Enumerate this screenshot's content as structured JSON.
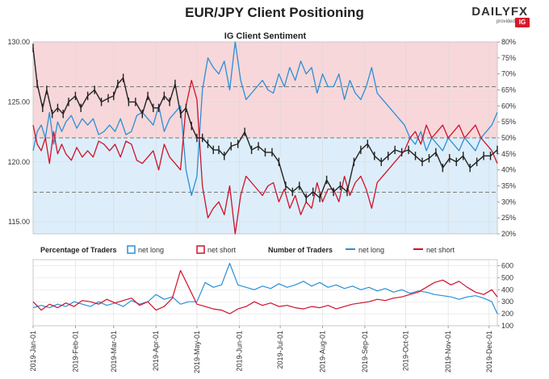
{
  "header": {
    "title": "EUR/JPY Client Positioning",
    "brand": "DAILYFX",
    "brand_sub": "provided by",
    "brand_badge": "IG"
  },
  "colors": {
    "net_long": "#2b8fd6",
    "net_short": "#d0112b",
    "price": "#222222",
    "short_fill": "#f7d7da",
    "long_fill": "#ddeefa",
    "panel_border": "#c9c9c9"
  },
  "chart_data": [
    {
      "type": "line",
      "title": "IG Client Sentiment",
      "y_left_ticks": [
        "130.00",
        "125.00",
        "120.00",
        "115.00"
      ],
      "y_left_range": [
        114,
        130
      ],
      "y_right_ticks": [
        "80%",
        "75%",
        "70%",
        "65%",
        "60%",
        "55%",
        "50%",
        "45%",
        "40%",
        "35%",
        "30%",
        "25%",
        "20%"
      ],
      "y_right_range": [
        20,
        80
      ],
      "dashed_levels_pct": [
        66,
        50,
        33
      ],
      "x_ticks": [
        "2019-Jan-01",
        "2019-Feb-01",
        "2019-Mar-01",
        "2019-Apr-01",
        "2019-May-01",
        "2019-Jun-01",
        "2019-Jul-01",
        "2019-Aug-01",
        "2019-Sep-01",
        "2019-Oct-01",
        "2019-Nov-01",
        "2019-Dec-01"
      ],
      "x_day_range": [
        0,
        340
      ],
      "price_series": {
        "days": [
          0,
          3,
          7,
          10,
          14,
          18,
          22,
          26,
          31,
          35,
          40,
          45,
          50,
          55,
          59,
          62,
          66,
          70,
          75,
          80,
          84,
          88,
          92,
          96,
          100,
          104,
          108,
          112,
          116,
          120,
          124,
          128,
          132,
          136,
          140,
          145,
          150,
          155,
          160,
          165,
          170,
          175,
          180,
          185,
          190,
          195,
          200,
          205,
          210,
          215,
          220,
          225,
          230,
          235,
          240,
          245,
          250,
          255,
          260,
          265,
          270,
          275,
          280,
          285,
          290,
          295,
          300,
          305,
          310,
          315,
          320,
          325,
          330,
          335,
          340
        ],
        "values": [
          129.5,
          126.5,
          124.5,
          126.0,
          124.0,
          124.5,
          124.0,
          125.0,
          125.5,
          124.5,
          125.5,
          126.0,
          125.0,
          125.3,
          125.5,
          126.5,
          127.0,
          125.0,
          125.0,
          124.0,
          125.5,
          124.5,
          124.5,
          125.5,
          125.0,
          126.5,
          124.0,
          124.5,
          123.0,
          122.0,
          122.0,
          121.5,
          121.0,
          121.0,
          120.5,
          121.3,
          121.5,
          122.5,
          121.0,
          121.3,
          120.8,
          120.8,
          120.0,
          118.0,
          117.5,
          118.0,
          117.0,
          117.5,
          117.0,
          118.5,
          117.5,
          118.0,
          117.5,
          120.0,
          121.0,
          121.5,
          120.5,
          120.0,
          120.5,
          121.0,
          120.8,
          121.0,
          120.5,
          120.0,
          120.3,
          120.8,
          119.5,
          120.3,
          120.0,
          120.5,
          119.5,
          120.0,
          120.5,
          120.5,
          121.0
        ]
      },
      "net_long_pct": {
        "days": [
          0,
          3,
          6,
          9,
          12,
          15,
          18,
          21,
          24,
          28,
          32,
          36,
          40,
          44,
          48,
          52,
          56,
          60,
          64,
          68,
          72,
          76,
          80,
          84,
          88,
          92,
          96,
          100,
          104,
          108,
          112,
          116,
          120,
          124,
          128,
          132,
          136,
          140,
          144,
          148,
          152,
          156,
          160,
          164,
          168,
          172,
          176,
          180,
          184,
          188,
          192,
          196,
          200,
          204,
          208,
          212,
          216,
          220,
          224,
          228,
          232,
          236,
          240,
          244,
          248,
          252,
          256,
          260,
          264,
          268,
          272,
          276,
          280,
          284,
          288,
          292,
          296,
          300,
          304,
          308,
          312,
          316,
          320,
          324,
          328,
          332,
          336,
          340
        ],
        "values": [
          46,
          52,
          54,
          50,
          58,
          48,
          55,
          52,
          55,
          57,
          53,
          56,
          54,
          56,
          51,
          52,
          54,
          52,
          56,
          51,
          52,
          57,
          58,
          56,
          54,
          60,
          52,
          56,
          58,
          60,
          40,
          32,
          38,
          65,
          75,
          72,
          70,
          74,
          65,
          80,
          68,
          62,
          64,
          66,
          68,
          65,
          64,
          70,
          66,
          72,
          68,
          74,
          70,
          72,
          64,
          70,
          66,
          66,
          70,
          62,
          68,
          64,
          62,
          66,
          72,
          64,
          62,
          60,
          58,
          56,
          54,
          50,
          48,
          52,
          46,
          50,
          48,
          46,
          50,
          48,
          46,
          50,
          48,
          46,
          50,
          52,
          54,
          58
        ]
      },
      "net_short_pct": {
        "days": [
          0,
          3,
          6,
          9,
          12,
          15,
          18,
          21,
          24,
          28,
          32,
          36,
          40,
          44,
          48,
          52,
          56,
          60,
          64,
          68,
          72,
          76,
          80,
          84,
          88,
          92,
          96,
          100,
          104,
          108,
          112,
          116,
          120,
          124,
          128,
          132,
          136,
          140,
          144,
          148,
          152,
          156,
          160,
          164,
          168,
          172,
          176,
          180,
          184,
          188,
          192,
          196,
          200,
          204,
          208,
          212,
          216,
          220,
          224,
          228,
          232,
          236,
          240,
          244,
          248,
          252,
          256,
          260,
          264,
          268,
          272,
          276,
          280,
          284,
          288,
          292,
          296,
          300,
          304,
          308,
          312,
          316,
          320,
          324,
          328,
          332,
          336,
          340
        ],
        "values": [
          54,
          48,
          46,
          50,
          42,
          52,
          45,
          48,
          45,
          43,
          47,
          44,
          46,
          44,
          49,
          48,
          46,
          48,
          44,
          49,
          48,
          43,
          42,
          44,
          46,
          40,
          48,
          44,
          42,
          40,
          60,
          68,
          62,
          35,
          25,
          28,
          30,
          26,
          35,
          20,
          32,
          38,
          36,
          34,
          32,
          35,
          36,
          30,
          34,
          28,
          32,
          26,
          30,
          28,
          36,
          30,
          34,
          34,
          30,
          38,
          32,
          36,
          38,
          34,
          28,
          36,
          38,
          40,
          42,
          44,
          46,
          50,
          52,
          48,
          54,
          50,
          52,
          54,
          50,
          52,
          54,
          50,
          52,
          54,
          50,
          48,
          46,
          42
        ]
      }
    },
    {
      "type": "line",
      "legend": [
        {
          "group": "Percentage of Traders",
          "items": [
            "net long",
            "net short"
          ]
        },
        {
          "group": "Number of Traders",
          "items": [
            "net long",
            "net short"
          ]
        }
      ],
      "y_right_ticks": [
        "600",
        "500",
        "400",
        "300",
        "200",
        "100"
      ],
      "y_right_range": [
        100,
        650
      ],
      "x_ticks": [
        "2019-Jan-01",
        "2019-Feb-01",
        "2019-Mar-01",
        "2019-Apr-01",
        "2019-May-01",
        "2019-Jun-01",
        "2019-Jul-01",
        "2019-Aug-01",
        "2019-Sep-01",
        "2019-Oct-01",
        "2019-Nov-01",
        "2019-Dec-01"
      ],
      "x_day_range": [
        0,
        340
      ],
      "net_long_count": {
        "days": [
          0,
          6,
          12,
          18,
          24,
          30,
          36,
          42,
          48,
          54,
          60,
          66,
          72,
          78,
          84,
          90,
          96,
          102,
          108,
          114,
          120,
          126,
          132,
          138,
          144,
          150,
          156,
          162,
          168,
          174,
          180,
          186,
          192,
          198,
          204,
          210,
          216,
          222,
          228,
          234,
          240,
          246,
          252,
          258,
          264,
          270,
          276,
          282,
          288,
          294,
          300,
          306,
          312,
          318,
          324,
          330,
          336,
          340
        ],
        "values": [
          250,
          270,
          250,
          280,
          260,
          300,
          280,
          260,
          300,
          270,
          290,
          260,
          310,
          280,
          300,
          360,
          320,
          340,
          280,
          300,
          300,
          460,
          420,
          440,
          620,
          440,
          420,
          400,
          430,
          410,
          450,
          420,
          440,
          470,
          430,
          460,
          420,
          440,
          410,
          430,
          400,
          420,
          390,
          410,
          380,
          400,
          370,
          390,
          380,
          360,
          350,
          340,
          320,
          340,
          350,
          330,
          300,
          200
        ]
      },
      "net_short_count": {
        "days": [
          0,
          6,
          12,
          18,
          24,
          30,
          36,
          42,
          48,
          54,
          60,
          66,
          72,
          78,
          84,
          90,
          96,
          102,
          108,
          114,
          120,
          126,
          132,
          138,
          144,
          150,
          156,
          162,
          168,
          174,
          180,
          186,
          192,
          198,
          204,
          210,
          216,
          222,
          228,
          234,
          240,
          246,
          252,
          258,
          264,
          270,
          276,
          282,
          288,
          294,
          300,
          306,
          312,
          318,
          324,
          330,
          336,
          340
        ],
        "values": [
          300,
          230,
          280,
          250,
          290,
          260,
          310,
          300,
          280,
          320,
          290,
          310,
          330,
          270,
          300,
          230,
          260,
          330,
          560,
          420,
          280,
          260,
          240,
          230,
          200,
          240,
          260,
          300,
          270,
          290,
          260,
          270,
          250,
          240,
          260,
          250,
          270,
          240,
          260,
          280,
          290,
          300,
          320,
          310,
          330,
          340,
          360,
          380,
          420,
          460,
          480,
          440,
          470,
          420,
          380,
          360,
          400,
          340
        ]
      }
    }
  ]
}
